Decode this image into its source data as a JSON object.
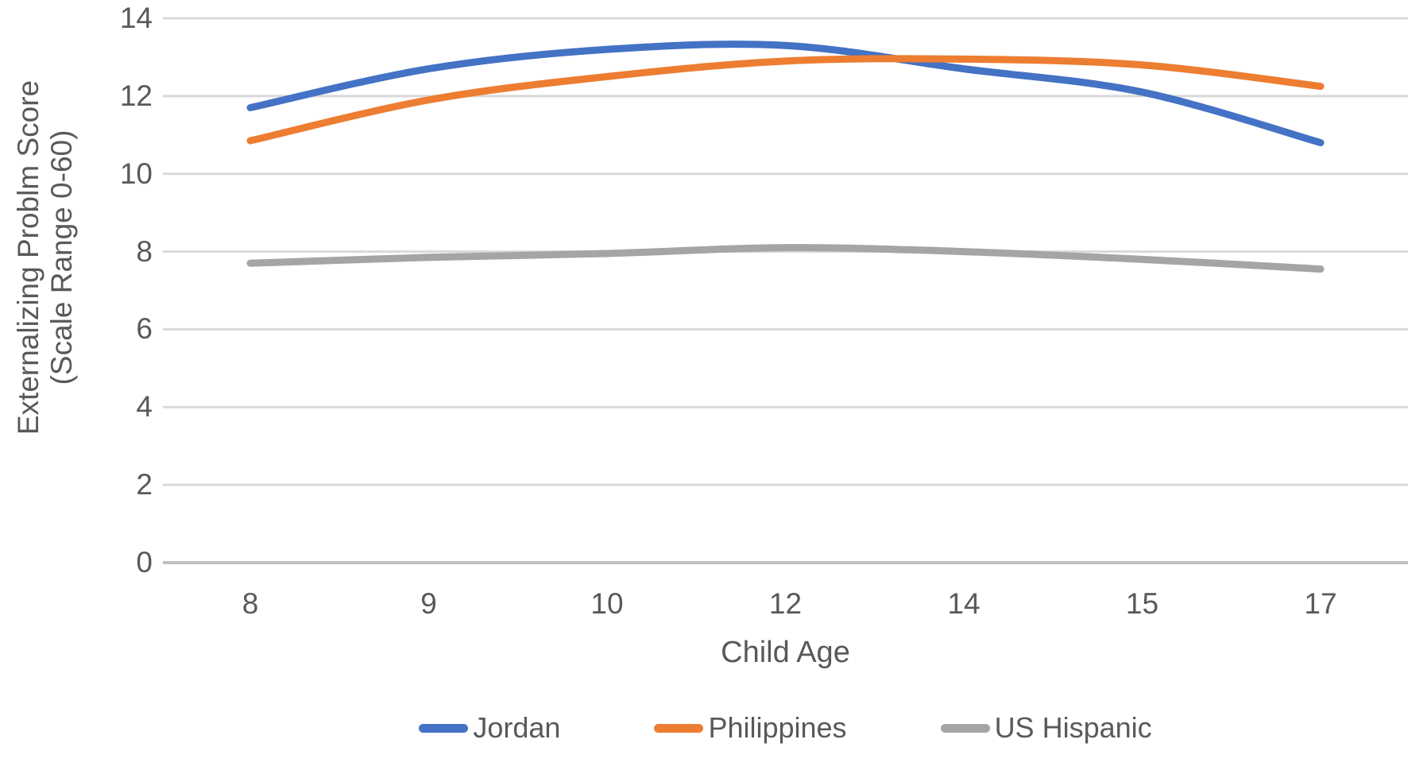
{
  "chart_data": {
    "type": "line",
    "title": "",
    "xlabel": "Child Age",
    "ylabel_line1": "Externalizing Problm Score",
    "ylabel_line2": "(Scale Range 0-60)",
    "categories": [
      "8",
      "9",
      "10",
      "12",
      "14",
      "15",
      "17"
    ],
    "y_ticks": [
      0,
      2,
      4,
      6,
      8,
      10,
      12,
      14
    ],
    "ylim": [
      0,
      14
    ],
    "grid": "horizontal",
    "smoothed": true,
    "legend_position": "bottom",
    "series": [
      {
        "name": "Jordan",
        "color": "#4472C4",
        "values": [
          11.7,
          12.7,
          13.2,
          13.3,
          12.7,
          12.1,
          10.8
        ]
      },
      {
        "name": "Philippines",
        "color": "#ED7D31",
        "values": [
          10.85,
          11.9,
          12.5,
          12.9,
          12.95,
          12.8,
          12.25
        ]
      },
      {
        "name": "US Hispanic",
        "color": "#A5A5A5",
        "values": [
          7.7,
          7.85,
          7.95,
          8.1,
          8.0,
          7.8,
          7.55
        ]
      }
    ],
    "colors": {
      "gridline": "#D9D9D9",
      "axis_line": "#C0C0C0",
      "text": "#595959",
      "background": "#FFFFFF"
    }
  }
}
